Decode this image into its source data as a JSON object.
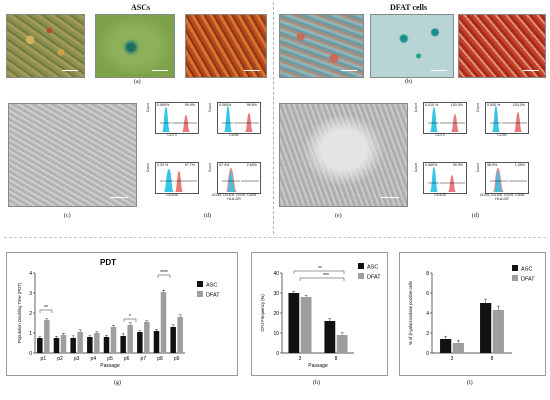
{
  "figure": {
    "asc_header": "ASCs",
    "dfat_header": "DFAT cells",
    "panel_labels": {
      "a": "(a)",
      "b": "(b)",
      "c": "(c)",
      "d1": "(d)",
      "e": "(e)",
      "d2": "(d)",
      "g": "(g)",
      "h": "(h)",
      "i": "(i)"
    }
  },
  "flow_asc": [
    {
      "marker": "CD73",
      "left": "0.060%",
      "right": "99.9%"
    },
    {
      "marker": "CD90",
      "left": "0.060%",
      "right": "99.9%"
    },
    {
      "marker": "CD105",
      "left": "2.29 %",
      "right": "97.7%"
    },
    {
      "marker": "CD34, CD11b, CD19, CD45\nHLA-DR",
      "left": "97.4%",
      "right": "2.60%"
    }
  ],
  "flow_dfat": [
    {
      "marker": "CD73",
      "left": "0.010 %",
      "right": "100.0%"
    },
    {
      "marker": "CD90",
      "left": "0.000 %",
      "right": "100.0%"
    },
    {
      "marker": "CD105",
      "left": "0.060%",
      "right": "99.9%"
    },
    {
      "marker": "CD34, CD11b, CD19, CD45\nHLA-DR",
      "left": "98.9%",
      "right": "1.09%"
    }
  ],
  "flow_ylabel": "Count",
  "colors": {
    "asc": "#111111",
    "dfat": "#9e9e9e",
    "cyan": "#33c6e6",
    "red": "#e8787a"
  },
  "chart_data": [
    {
      "type": "bar",
      "title": "PDT",
      "xlabel": "Passage",
      "ylabel": "Population Doubling Time (PDT)",
      "categories": [
        "p1",
        "p2",
        "p3",
        "p4",
        "p5",
        "p6",
        "p7",
        "p8",
        "p9"
      ],
      "series": [
        {
          "name": "ASC",
          "values": [
            0.75,
            0.75,
            0.75,
            0.8,
            0.8,
            0.85,
            1.05,
            1.1,
            1.3
          ]
        },
        {
          "name": "DFAT",
          "values": [
            1.65,
            0.9,
            1.05,
            1.0,
            1.3,
            1.4,
            1.55,
            3.05,
            1.8
          ]
        }
      ],
      "ylim": [
        0,
        4
      ],
      "yticks": [
        "0",
        "1",
        "2",
        "3",
        "4"
      ],
      "annotations": [
        "**",
        "*",
        "****"
      ]
    },
    {
      "type": "bar",
      "xlabel": "Passage",
      "ylabel": "CFU Frequency (%)",
      "categories": [
        "3",
        "8"
      ],
      "series": [
        {
          "name": "ASC",
          "values": [
            30,
            16
          ]
        },
        {
          "name": "DFAT",
          "values": [
            28,
            9
          ]
        }
      ],
      "ylim": [
        0,
        40
      ],
      "yticks": [
        "0",
        "10",
        "20",
        "30",
        "40"
      ],
      "annotations": [
        "**",
        "***"
      ]
    },
    {
      "type": "bar",
      "ylabel": "% of β-galactosidase positive cells",
      "categories": [
        "3",
        "8"
      ],
      "series": [
        {
          "name": "ASC",
          "values": [
            1.4,
            5.0
          ]
        },
        {
          "name": "DFAT",
          "values": [
            1.0,
            4.3
          ]
        }
      ],
      "ylim": [
        0,
        8
      ],
      "yticks": [
        "0",
        "2",
        "4",
        "6",
        "8"
      ],
      "annotations": []
    }
  ]
}
